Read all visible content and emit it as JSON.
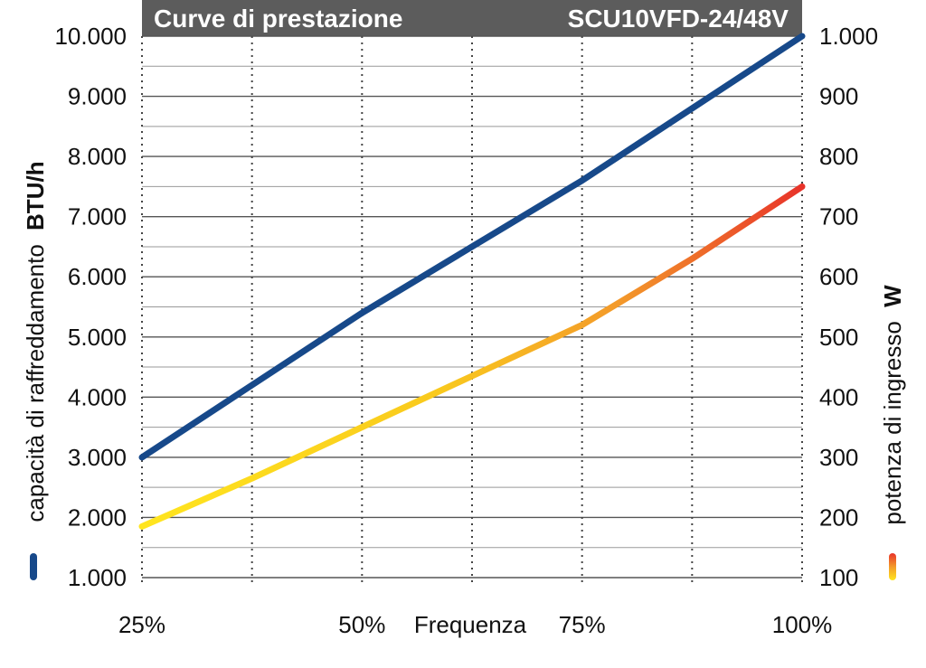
{
  "chart_data": {
    "type": "line",
    "title": "Curve di prestazione",
    "model": "SCU10VFD-24/48V",
    "xlabel": "Frequenza",
    "categories": [
      "25%",
      "50%",
      "75%",
      "100%"
    ],
    "x": [
      25,
      50,
      75,
      100
    ],
    "xlim": [
      25,
      100
    ],
    "ylabel_left": {
      "text": "capacità di raffreddamento",
      "unit": "BTU/h"
    },
    "ylabel_right": {
      "text": "potenza di ingresso",
      "unit": "W"
    },
    "ylim_left": [
      1000,
      10000
    ],
    "ylim_right": [
      100,
      1000
    ],
    "yticks_left": [
      "1.000",
      "2.000",
      "3.000",
      "4.000",
      "5.000",
      "6.000",
      "7.000",
      "8.000",
      "9.000",
      "10.000"
    ],
    "yticks_right": [
      "100",
      "200",
      "300",
      "400",
      "500",
      "600",
      "700",
      "800",
      "900",
      "1.000"
    ],
    "grid": true,
    "series": [
      {
        "axis": "left",
        "color": "#17498a",
        "points": [
          [
            25,
            3000
          ],
          [
            37.5,
            4200
          ],
          [
            50,
            5400
          ],
          [
            62.5,
            6500
          ],
          [
            75,
            7600
          ],
          [
            87.5,
            8800
          ],
          [
            100,
            10000
          ]
        ]
      },
      {
        "axis": "right",
        "color_start": "#ffe51f",
        "color_end": "#e8332a",
        "points": [
          [
            25,
            185
          ],
          [
            37.5,
            265
          ],
          [
            50,
            350
          ],
          [
            62.5,
            435
          ],
          [
            75,
            520
          ],
          [
            87.5,
            630
          ],
          [
            100,
            750
          ]
        ]
      }
    ]
  }
}
